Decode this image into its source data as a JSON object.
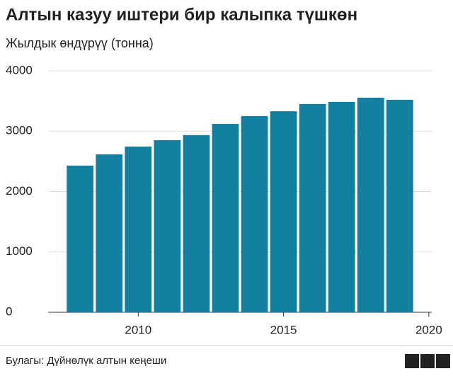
{
  "chart_data": {
    "type": "bar",
    "title": "Алтын казуу иштери бир калыпка түшкөн",
    "subtitle": "Жылдык өндүрүү (тонна)",
    "source": "Булагы: Дүйнөлүк алтын кеңеши",
    "logo": "BBC",
    "x": [
      2008,
      2009,
      2010,
      2011,
      2012,
      2013,
      2014,
      2015,
      2016,
      2017,
      2018,
      2019
    ],
    "values": [
      2430,
      2615,
      2745,
      2850,
      2935,
      3120,
      3250,
      3330,
      3450,
      3485,
      3555,
      3520
    ],
    "color": "#1380a1",
    "xlim": [
      2006.9,
      2020.1
    ],
    "xticks": [
      2010,
      2015,
      2020
    ],
    "ylim": [
      0,
      4000
    ],
    "yticks": [
      0,
      1000,
      2000,
      3000,
      4000
    ],
    "grid": true
  }
}
